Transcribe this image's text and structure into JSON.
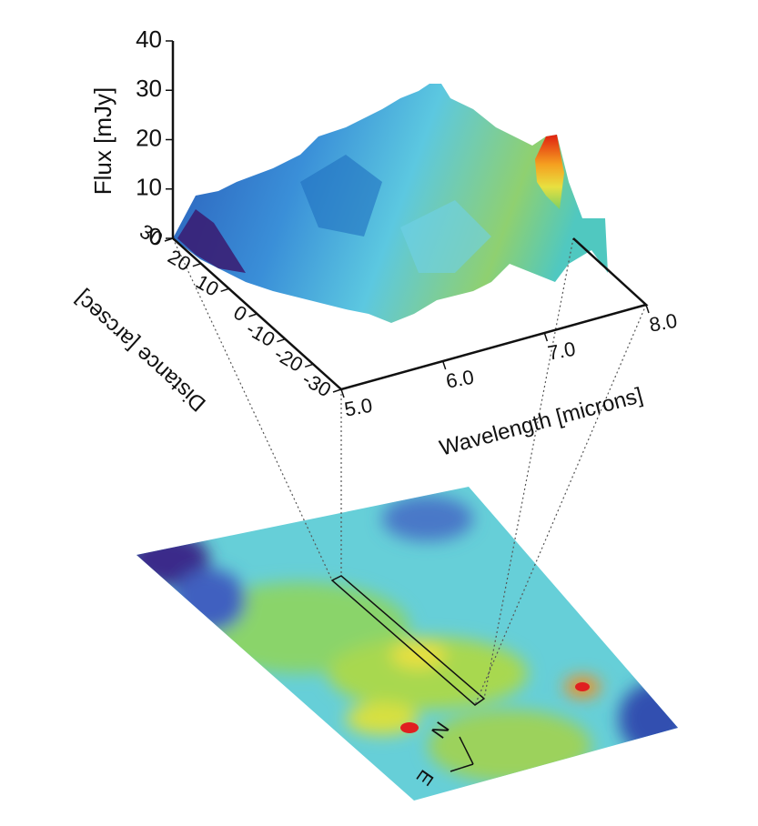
{
  "chart_data": {
    "type": "surface3d",
    "zlabel": "Flux  [mJy]",
    "zlim": [
      0,
      40
    ],
    "zticks": [
      0,
      10,
      20,
      30,
      40
    ],
    "xlabel": "Wavelength  [microns]",
    "xlim": [
      5,
      8
    ],
    "xticks": [
      {
        "value": 5,
        "label": "5.0"
      },
      {
        "value": 6,
        "label": "6.0"
      },
      {
        "value": 7,
        "label": "7.0"
      },
      {
        "value": 8,
        "label": "8.0"
      }
    ],
    "ylabel": "Distance [arcsec]",
    "ylim": [
      -30,
      30
    ],
    "yticks": [
      -30,
      -20,
      -10,
      0,
      10,
      20,
      30
    ],
    "compass": [
      "N",
      "E"
    ]
  }
}
